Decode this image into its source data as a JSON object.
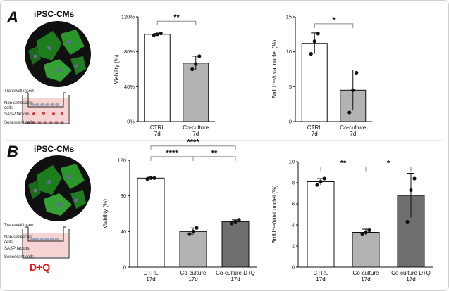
{
  "panels": [
    {
      "letter": "A",
      "title": "iPSC-CMs",
      "labels": {
        "transwell": "Transwell insert",
        "nonsen1": "Non-senescent",
        "nonsen2": "cells",
        "sasp": "SASP factors",
        "senescent": "Senescent cells"
      }
    },
    {
      "letter": "B",
      "title": "iPSC-CMs",
      "labels": {
        "transwell": "Transwell insert",
        "nonsen1": "Non-senescent",
        "nonsen2": "cells",
        "sasp": "SASP factors",
        "senescent": "Senescent cells"
      },
      "treatment": "D+Q"
    }
  ],
  "colors": {
    "white": "#ffffff",
    "light_gray": "#b3b3b3",
    "dark_gray": "#6e6e6e",
    "dish_fill": "#f7d4d4",
    "cell_green": "#3fd43f",
    "red": "#e8151b"
  },
  "chart_data": [
    {
      "id": "A1",
      "type": "bar",
      "ylabel": "Viability (%)",
      "yticks": [
        "0%",
        "40%",
        "80%",
        "120%"
      ],
      "ylim": [
        0,
        120
      ],
      "tick_values": [
        0,
        40,
        80,
        120
      ],
      "categories": [
        [
          "CTRL",
          "7d"
        ],
        [
          "Co-culture",
          "7d"
        ]
      ],
      "values": [
        100,
        67
      ],
      "errors": [
        1,
        8
      ],
      "points": [
        [
          99,
          100,
          101
        ],
        [
          60,
          66,
          75
        ]
      ],
      "fills": [
        "white",
        "light_gray"
      ],
      "significance": [
        {
          "from": 0,
          "to": 1,
          "label": "**",
          "level": 115
        }
      ]
    },
    {
      "id": "A2",
      "type": "bar",
      "ylabel": "BrdU⁺ᵒˢ/total nuclei (%)",
      "yticks": [
        "0",
        "5",
        "10",
        "15"
      ],
      "ylim": [
        0,
        15
      ],
      "tick_values": [
        0,
        5,
        10,
        15
      ],
      "categories": [
        [
          "CTRL",
          "7d"
        ],
        [
          "Co-culture",
          "7d"
        ]
      ],
      "values": [
        11.2,
        4.5
      ],
      "errors": [
        1.5,
        2.9
      ],
      "points": [
        [
          9.7,
          11.5,
          12.6
        ],
        [
          1.3,
          4.5,
          7.0
        ]
      ],
      "fills": [
        "white",
        "light_gray"
      ],
      "significance": [
        {
          "from": 0,
          "to": 1,
          "label": "*",
          "level": 14.0
        }
      ]
    },
    {
      "id": "B1",
      "type": "bar",
      "ylabel": "Viability (%)",
      "yticks": [
        "0",
        "40",
        "80",
        "120"
      ],
      "ylim": [
        0,
        120
      ],
      "tick_values": [
        0,
        40,
        80,
        120
      ],
      "categories": [
        [
          "CTRL",
          "17d"
        ],
        [
          "Co-culture",
          "17d"
        ],
        [
          "Co-culture D+Q",
          "17d"
        ]
      ],
      "values": [
        100,
        40,
        51
      ],
      "errors": [
        1,
        4,
        2
      ],
      "points": [
        [
          99,
          100,
          100
        ],
        [
          37,
          40,
          44
        ],
        [
          49,
          51,
          53
        ]
      ],
      "fills": [
        "white",
        "light_gray",
        "dark_gray"
      ],
      "significance": [
        {
          "from": 0,
          "to": 2,
          "label": "****",
          "level": 136
        },
        {
          "from": 0,
          "to": 1,
          "label": "****",
          "level": 124
        },
        {
          "from": 1,
          "to": 2,
          "label": "**",
          "level": 124
        }
      ]
    },
    {
      "id": "B2",
      "type": "bar",
      "ylabel": "BrdU⁺ᵒˢ/total nuclei (%)",
      "yticks": [
        "0",
        "2",
        "4",
        "6",
        "8",
        "10"
      ],
      "ylim": [
        0,
        10
      ],
      "tick_values": [
        0,
        2,
        4,
        6,
        8,
        10
      ],
      "categories": [
        [
          "CTRL",
          "17d"
        ],
        [
          "Co-culture",
          "17d"
        ],
        [
          "Co-culture D+Q",
          "17d"
        ]
      ],
      "values": [
        8.1,
        3.3,
        6.8
      ],
      "errors": [
        0.3,
        0.3,
        2.1
      ],
      "points": [
        [
          7.8,
          8.1,
          8.4
        ],
        [
          3.1,
          3.3,
          3.5
        ],
        [
          4.3,
          7.3,
          8.4
        ]
      ],
      "fills": [
        "white",
        "light_gray",
        "dark_gray"
      ],
      "significance": [
        {
          "from": 0,
          "to": 1,
          "label": "**",
          "level": 9.5
        },
        {
          "from": 1,
          "to": 2,
          "label": "*",
          "level": 9.5
        }
      ]
    }
  ]
}
